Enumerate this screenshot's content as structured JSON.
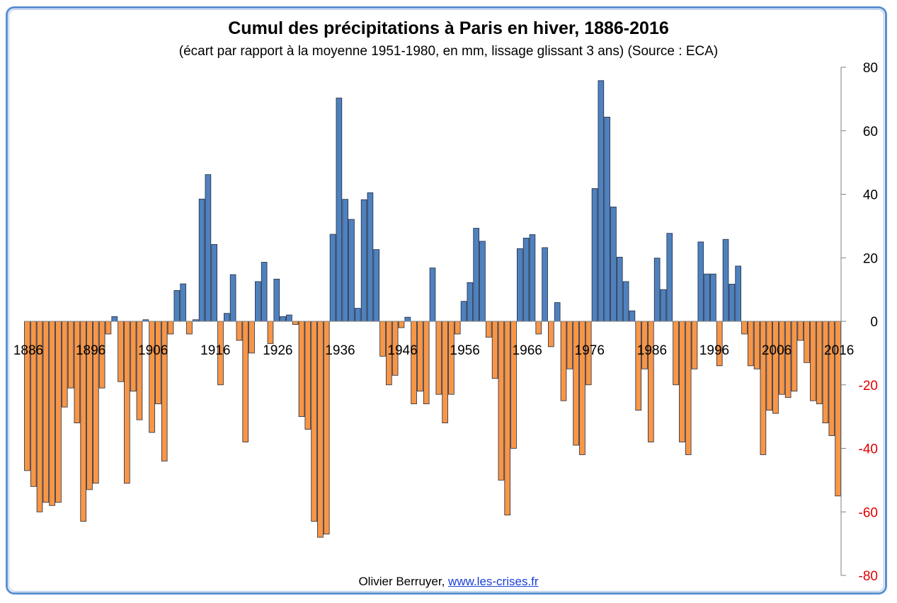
{
  "chart_data": {
    "type": "bar",
    "title": "Cumul des précipitations à Paris en hiver, 1886-2016",
    "subtitle": "(écart par rapport à la moyenne 1951-1980, en mm, lissage glissant 3 ans) (Source : ECA)",
    "ylim": [
      -80,
      80
    ],
    "y_ticks": [
      "80",
      "60",
      "40",
      "20",
      "0",
      "-20",
      "-40",
      "-60",
      "-80"
    ],
    "x_tick_labels": [
      "1886",
      "1896",
      "1906",
      "1916",
      "1926",
      "1936",
      "1946",
      "1956",
      "1966",
      "1976",
      "1986",
      "1996",
      "2006",
      "2016"
    ],
    "colors": {
      "positive": "#4f81bd",
      "negative": "#f79646",
      "bar_edge": "#1f2a44",
      "negative_tick_label": "#e00000",
      "positive_tick_label": "#000000"
    },
    "grid": false,
    "legend": "none",
    "x_start": 1886,
    "x_end": 2016,
    "values": [
      -47,
      -52,
      -60,
      -57,
      -58,
      -57,
      -27,
      -21,
      -32,
      -63,
      -53,
      -51,
      -21,
      -4,
      1.5,
      -19,
      -51,
      -22,
      -31,
      0.5,
      -35,
      -26,
      -44,
      -4,
      9.7,
      11.8,
      -4,
      0.5,
      38.5,
      46.2,
      24.2,
      -20,
      2.5,
      14.7,
      -6,
      -38,
      -10,
      12.5,
      18.6,
      -7,
      13.3,
      1.5,
      2,
      -1,
      -30,
      -34,
      -63,
      -68,
      -67,
      27.4,
      70.3,
      38.4,
      32.1,
      4.1,
      38.3,
      40.5,
      22.6,
      -11,
      -20,
      -17,
      -2,
      1.3,
      -26,
      -22,
      -26,
      16.8,
      -23,
      -32,
      -23,
      -4,
      6.3,
      12.2,
      29.3,
      25.2,
      -5,
      -18,
      -50,
      -61,
      -40,
      22.9,
      26.2,
      27.3,
      -4,
      23.2,
      -8,
      5.9,
      -25,
      -15,
      -39,
      -42,
      -20,
      41.8,
      75.8,
      64.3,
      36,
      20.2,
      12.5,
      3.3,
      -28,
      -15,
      -38,
      19.9,
      10,
      27.7,
      -20,
      -38,
      -42,
      -15,
      25,
      14.9,
      14.9,
      -14,
      25.8,
      11.7,
      17.4,
      -4,
      -14,
      -15,
      -42,
      -28,
      -29,
      -23,
      -24,
      -22,
      -6,
      -13,
      -25,
      -26,
      -32,
      -36,
      -55
    ]
  },
  "credit": {
    "author": "Olivier Berruyer,",
    "link_text": "www.les-crises.fr"
  }
}
